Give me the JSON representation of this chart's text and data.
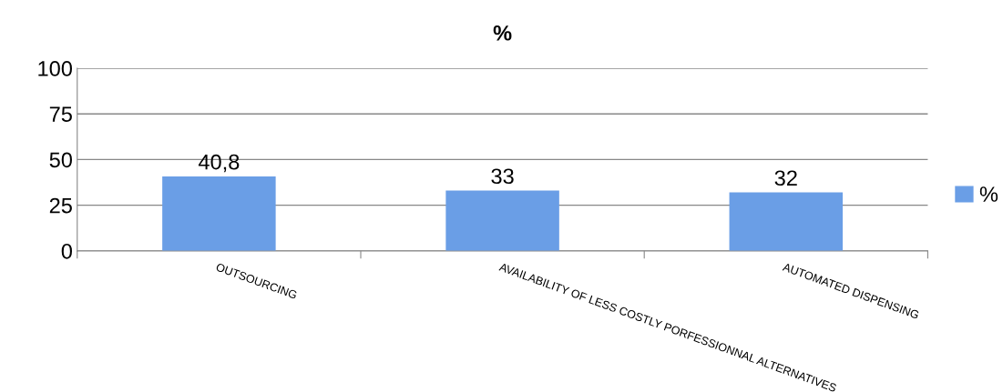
{
  "chart_data": {
    "type": "bar",
    "title": "%",
    "categories": [
      "OUTSOURCING",
      "AVAILABILITY OF LESS COSTLY PORFESSIONNAL ALTERNATIVES",
      "AUTOMATED DISPENSING"
    ],
    "series": [
      {
        "name": "%",
        "color": "#6a9ee6",
        "values": [
          40.8,
          33,
          32
        ],
        "value_labels": [
          "40,8",
          "33",
          "32"
        ]
      }
    ],
    "ylim": [
      0,
      100
    ],
    "yticks": [
      0,
      25,
      50,
      75,
      100
    ],
    "grid": "y",
    "legend": "right"
  }
}
